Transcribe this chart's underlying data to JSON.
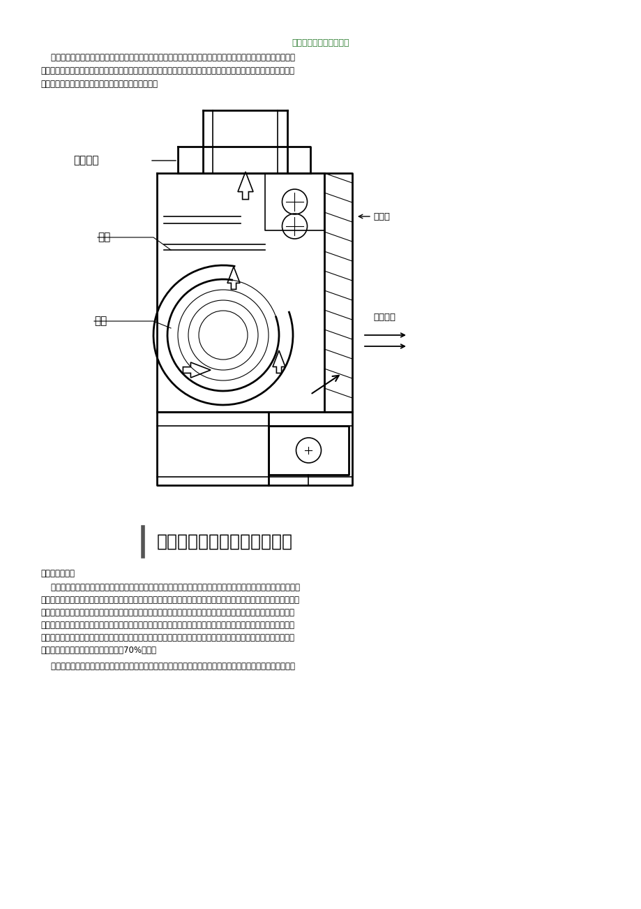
{
  "title": "喷漆房废气处理方式介绍",
  "title_color": "#2e7d32",
  "title_fontsize": 9,
  "bg_color": "#ffffff",
  "text_color": "#000000",
  "para1_line1": "    在喷漆房的喷漆过程中，产生废气是不可避免的，既污染环境又损害人体健康，所以对这些废气进行处理是必不可",
  "para1_line2": "少的，喷漆房中的废气处理方式主要有以下几种：断绝法、水喷雾法、燃烧法、吸取法、冷凝法、等离子低温催化氧化",
  "para1_line3": "法、吸附法。其中，最常采用的是水喷雾法和吸附法。",
  "diagram_caption": "水帘漆雾处理系统工作原理图",
  "label_paifengji": "搭排风机",
  "label_shuilian": "水帘",
  "label_woke": "蜗壳",
  "label_shuimuban": "水幕板",
  "label_qiliufangxiang": "气流方向",
  "section1_title": "一、水喷雾法：",
  "s1p1_l1": "    水喷雾法应用广泛，其原理是通过水喷洒在废气排放，水溶性或大颗粒沉降，实现污染物、洁净的气体分离的目的。",
  "s1p1_l2": "拿无泵水幕喷漆室为例，该无泵水幕喷漆室采用空气诱导提水形成循环水幕。工人面对水帘对工件表面进行喷漆操作时，",
  "s1p1_l3": "含有漆雾的空气在与水幕撞击后，穿过水帘进入气水通道，与通道里的水产生强烈的混合，当进入集气箱后，流速突然",
  "s1p1_l4": "降低，气水分离，空气通过挡水板后，被风机抽入活性炭吸附装置中；而被分离的水在集气箱汇集后流入溢水槽，水从",
  "s1p1_l5": "溢水槽溢流到泛水板上形成水幕，流回水幕。在此过程中使漆雾结成漆块，从而吸附去除油漆颗粒物。经调查，水帘漆",
  "s1p1_l6": "雾处理系统对油漆颗粒物的去除效率为70%左右。",
  "s1p2_l1": "    水帘漆雾处理系统处理后的喷漆废气中还含有大量颗粒物，为防止堵塞后续活性炭净化设施，需在喷漆室顶安装吸"
}
